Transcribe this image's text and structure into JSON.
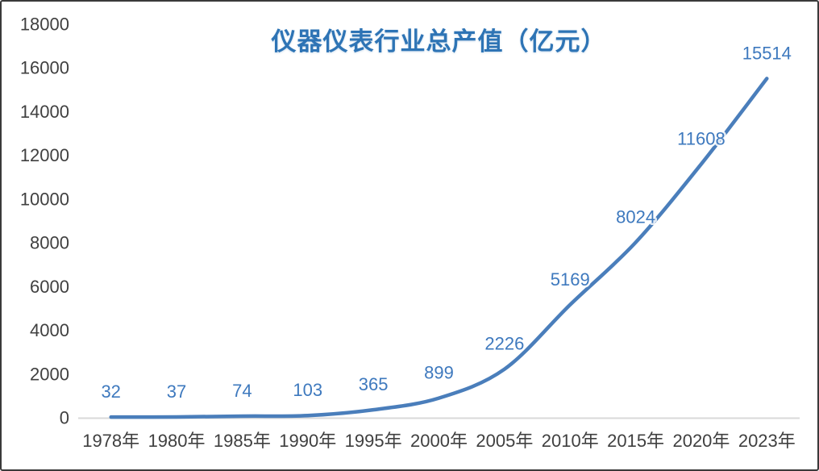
{
  "chart_data": {
    "type": "line",
    "title": "仪器仪表行业总产值（亿元）",
    "categories": [
      "1978年",
      "1980年",
      "1985年",
      "1990年",
      "1995年",
      "2000年",
      "2005年",
      "2010年",
      "2015年",
      "2020年",
      "2023年"
    ],
    "series": [
      {
        "name": "仪器仪表行业总产值",
        "values": [
          32,
          37,
          74,
          103,
          365,
          899,
          2226,
          5169,
          8024,
          11608,
          15514
        ]
      }
    ],
    "data_labels": [
      "32",
      "37",
      "74",
      "103",
      "365",
      "899",
      "2226",
      "5169",
      "8024",
      "11608",
      "15514"
    ],
    "xlabel": "",
    "ylabel": "",
    "ylim": [
      0,
      18000
    ],
    "y_tick_step": 2000,
    "y_tick_labels": [
      "0",
      "2000",
      "4000",
      "6000",
      "8000",
      "10000",
      "12000",
      "14000",
      "16000",
      "18000"
    ],
    "grid": false,
    "legend_position": "none",
    "line_smooth": true,
    "colors": {
      "line": "#4A7EBB",
      "data_label": "#3E79BE",
      "title": "#2E74B5",
      "axis_text": "#404040",
      "axis_line": "#D9D9D9",
      "background": "#FFFFFF"
    }
  }
}
